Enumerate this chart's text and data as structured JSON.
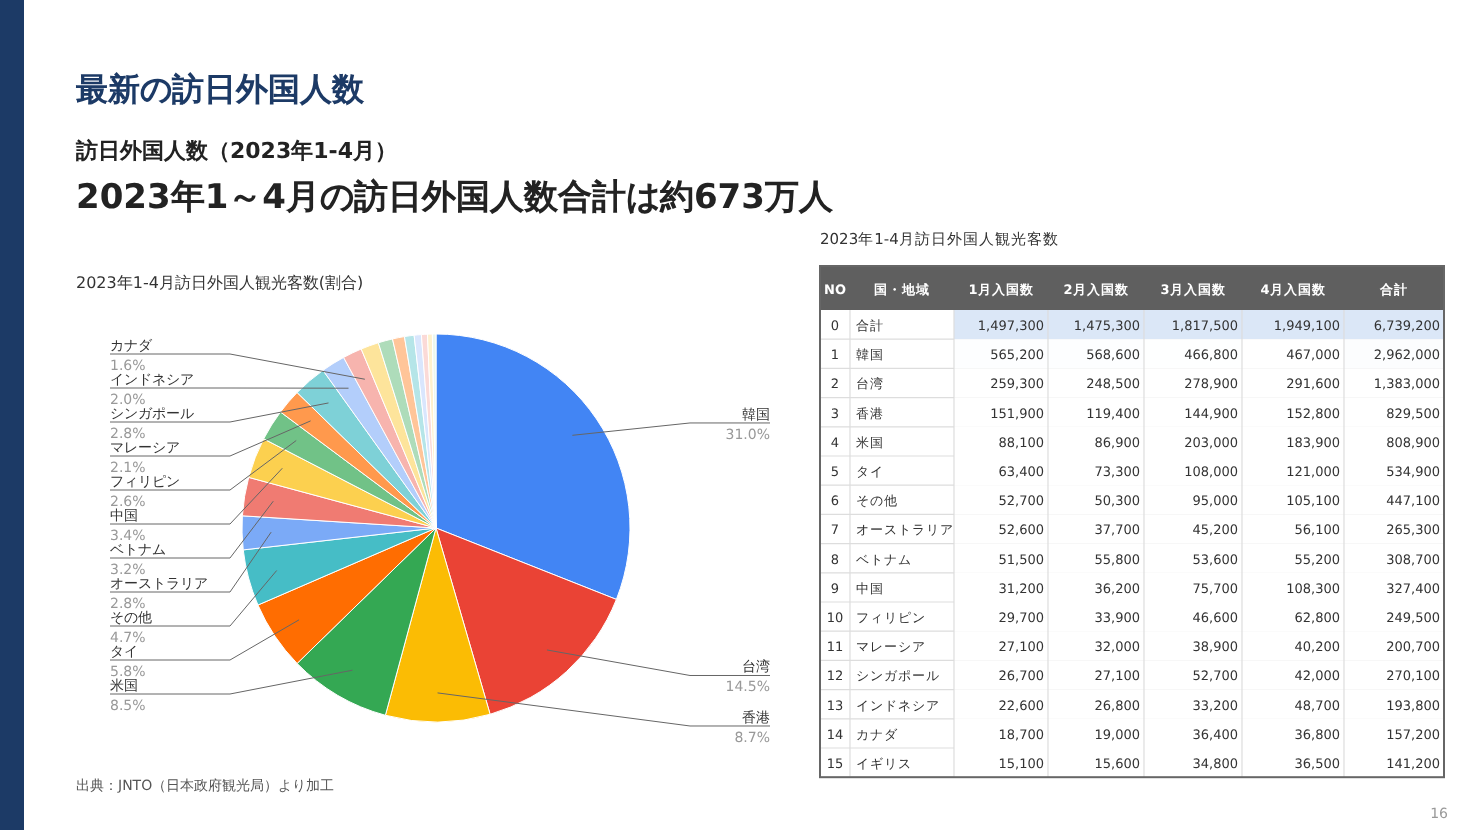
{
  "chart_data": [
    {
      "type": "other",
      "title": "最新の訪日外国人数",
      "subtitle": "訪日外国人数（2023年1-4月）",
      "annotations": [
        "2023年1～4月の訪日外国人数合計は約673万人",
        "出典：JNTO（日本政府観光局）より加工",
        "16"
      ]
    },
    {
      "type": "pie",
      "title": "2023年1-4月訪日外国人観光客数(割合)",
      "categories": [
        "韓国",
        "台湾",
        "香港",
        "米国",
        "タイ",
        "その他",
        "オーストラリア",
        "ベトナム",
        "中国",
        "フィリピン",
        "マレーシア",
        "シンガポール",
        "インドネシア",
        "カナダ",
        null,
        null,
        null,
        null,
        null,
        null,
        null,
        null
      ],
      "values": [
        31.0,
        14.5,
        8.7,
        8.5,
        5.8,
        4.7,
        2.8,
        3.2,
        3.4,
        2.6,
        2.1,
        2.8,
        2.0,
        1.6,
        1.5,
        1.2,
        1.0,
        0.8,
        0.6,
        0.5,
        0.4,
        0.3
      ],
      "colors": [
        "#4285f4",
        "#ea4335",
        "#fbbc04",
        "#34a853",
        "#ff6d01",
        "#46bdc6",
        "#7baaf7",
        "#f07b72",
        "#fcd04f",
        "#71c287",
        "#ff994d",
        "#7ed1d7",
        "#b3cefb",
        "#f7b4ae",
        "#fde49b",
        "#aedcba",
        "#ffc599",
        "#b5e5e8",
        "#d9e6fd",
        "#fbdad7",
        "#fef1cd",
        "#ecf7ee"
      ],
      "value_labels": [
        "31.0%",
        "14.5%",
        "8.7%",
        "8.5%",
        "5.8%",
        "4.7%",
        "2.8%",
        "3.2%",
        "3.4%",
        "2.6%",
        "2.1%",
        "2.8%",
        "2.0%",
        "1.6%",
        null,
        null,
        null,
        null,
        null,
        null,
        null,
        null
      ]
    },
    {
      "type": "heatmap",
      "title": "2023年1-4月訪日外国人観光客数",
      "ylabel": "国・地域",
      "y2label": "NO",
      "categories": [
        "1月入国数",
        "2月入国数",
        "3月入国数",
        "4月入国数",
        "合計"
      ],
      "y_categories": [
        "合計",
        "韓国",
        "台湾",
        "香港",
        "米国",
        "タイ",
        "その他",
        "オーストラリア",
        "ベトナム",
        "中国",
        "フィリピン",
        "マレーシア",
        "シンガポール",
        "インドネシア",
        "カナダ",
        "イギリス"
      ],
      "y2_categories": [
        "0",
        "1",
        "2",
        "3",
        "4",
        "5",
        "6",
        "7",
        "8",
        "9",
        "10",
        "11",
        "12",
        "13",
        "14",
        "15"
      ],
      "cells": [
        [
          1497300,
          1475300,
          1817500,
          1949100,
          6739200
        ],
        [
          565200,
          568600,
          466800,
          467000,
          2962000
        ],
        [
          259300,
          248500,
          278900,
          291600,
          1383000
        ],
        [
          151900,
          119400,
          144900,
          152800,
          829500
        ],
        [
          88100,
          86900,
          203000,
          183900,
          808900
        ],
        [
          63400,
          73300,
          108000,
          121000,
          534900
        ],
        [
          52700,
          50300,
          95000,
          105100,
          447100
        ],
        [
          52600,
          37700,
          45200,
          56100,
          265300
        ],
        [
          51500,
          55800,
          53600,
          55200,
          308700
        ],
        [
          31200,
          36200,
          75700,
          108300,
          327400
        ],
        [
          29700,
          33900,
          46600,
          62800,
          249500
        ],
        [
          27100,
          32000,
          38900,
          40200,
          200700
        ],
        [
          26700,
          27100,
          52700,
          42000,
          270100
        ],
        [
          22600,
          26800,
          33200,
          48700,
          193800
        ],
        [
          18700,
          19000,
          36400,
          36800,
          157200
        ],
        [
          15100,
          15600,
          34800,
          36500,
          141200
        ]
      ],
      "cell_labels": [
        [
          "1,497,300",
          "1,475,300",
          "1,817,500",
          "1,949,100",
          "6,739,200"
        ],
        [
          "565,200",
          "568,600",
          "466,800",
          "467,000",
          "2,962,000"
        ],
        [
          "259,300",
          "248,500",
          "278,900",
          "291,600",
          "1,383,000"
        ],
        [
          "151,900",
          "119,400",
          "144,900",
          "152,800",
          "829,500"
        ],
        [
          "88,100",
          "86,900",
          "203,000",
          "183,900",
          "808,900"
        ],
        [
          "63,400",
          "73,300",
          "108,000",
          "121,000",
          "534,900"
        ],
        [
          "52,700",
          "50,300",
          "95,000",
          "105,100",
          "447,100"
        ],
        [
          "52,600",
          "37,700",
          "45,200",
          "56,100",
          "265,300"
        ],
        [
          "51,500",
          "55,800",
          "53,600",
          "55,200",
          "308,700"
        ],
        [
          "31,200",
          "36,200",
          "75,700",
          "108,300",
          "327,400"
        ],
        [
          "29,700",
          "33,900",
          "46,600",
          "62,800",
          "249,500"
        ],
        [
          "27,100",
          "32,000",
          "38,900",
          "40,200",
          "200,700"
        ],
        [
          "26,700",
          "27,100",
          "52,700",
          "42,000",
          "270,100"
        ],
        [
          "22,600",
          "26,800",
          "33,200",
          "48,700",
          "193,800"
        ],
        [
          "18,700",
          "19,000",
          "36,400",
          "36,800",
          "157,200"
        ],
        [
          "15,100",
          "15,600",
          "34,800",
          "36,500",
          "141,200"
        ]
      ]
    }
  ]
}
